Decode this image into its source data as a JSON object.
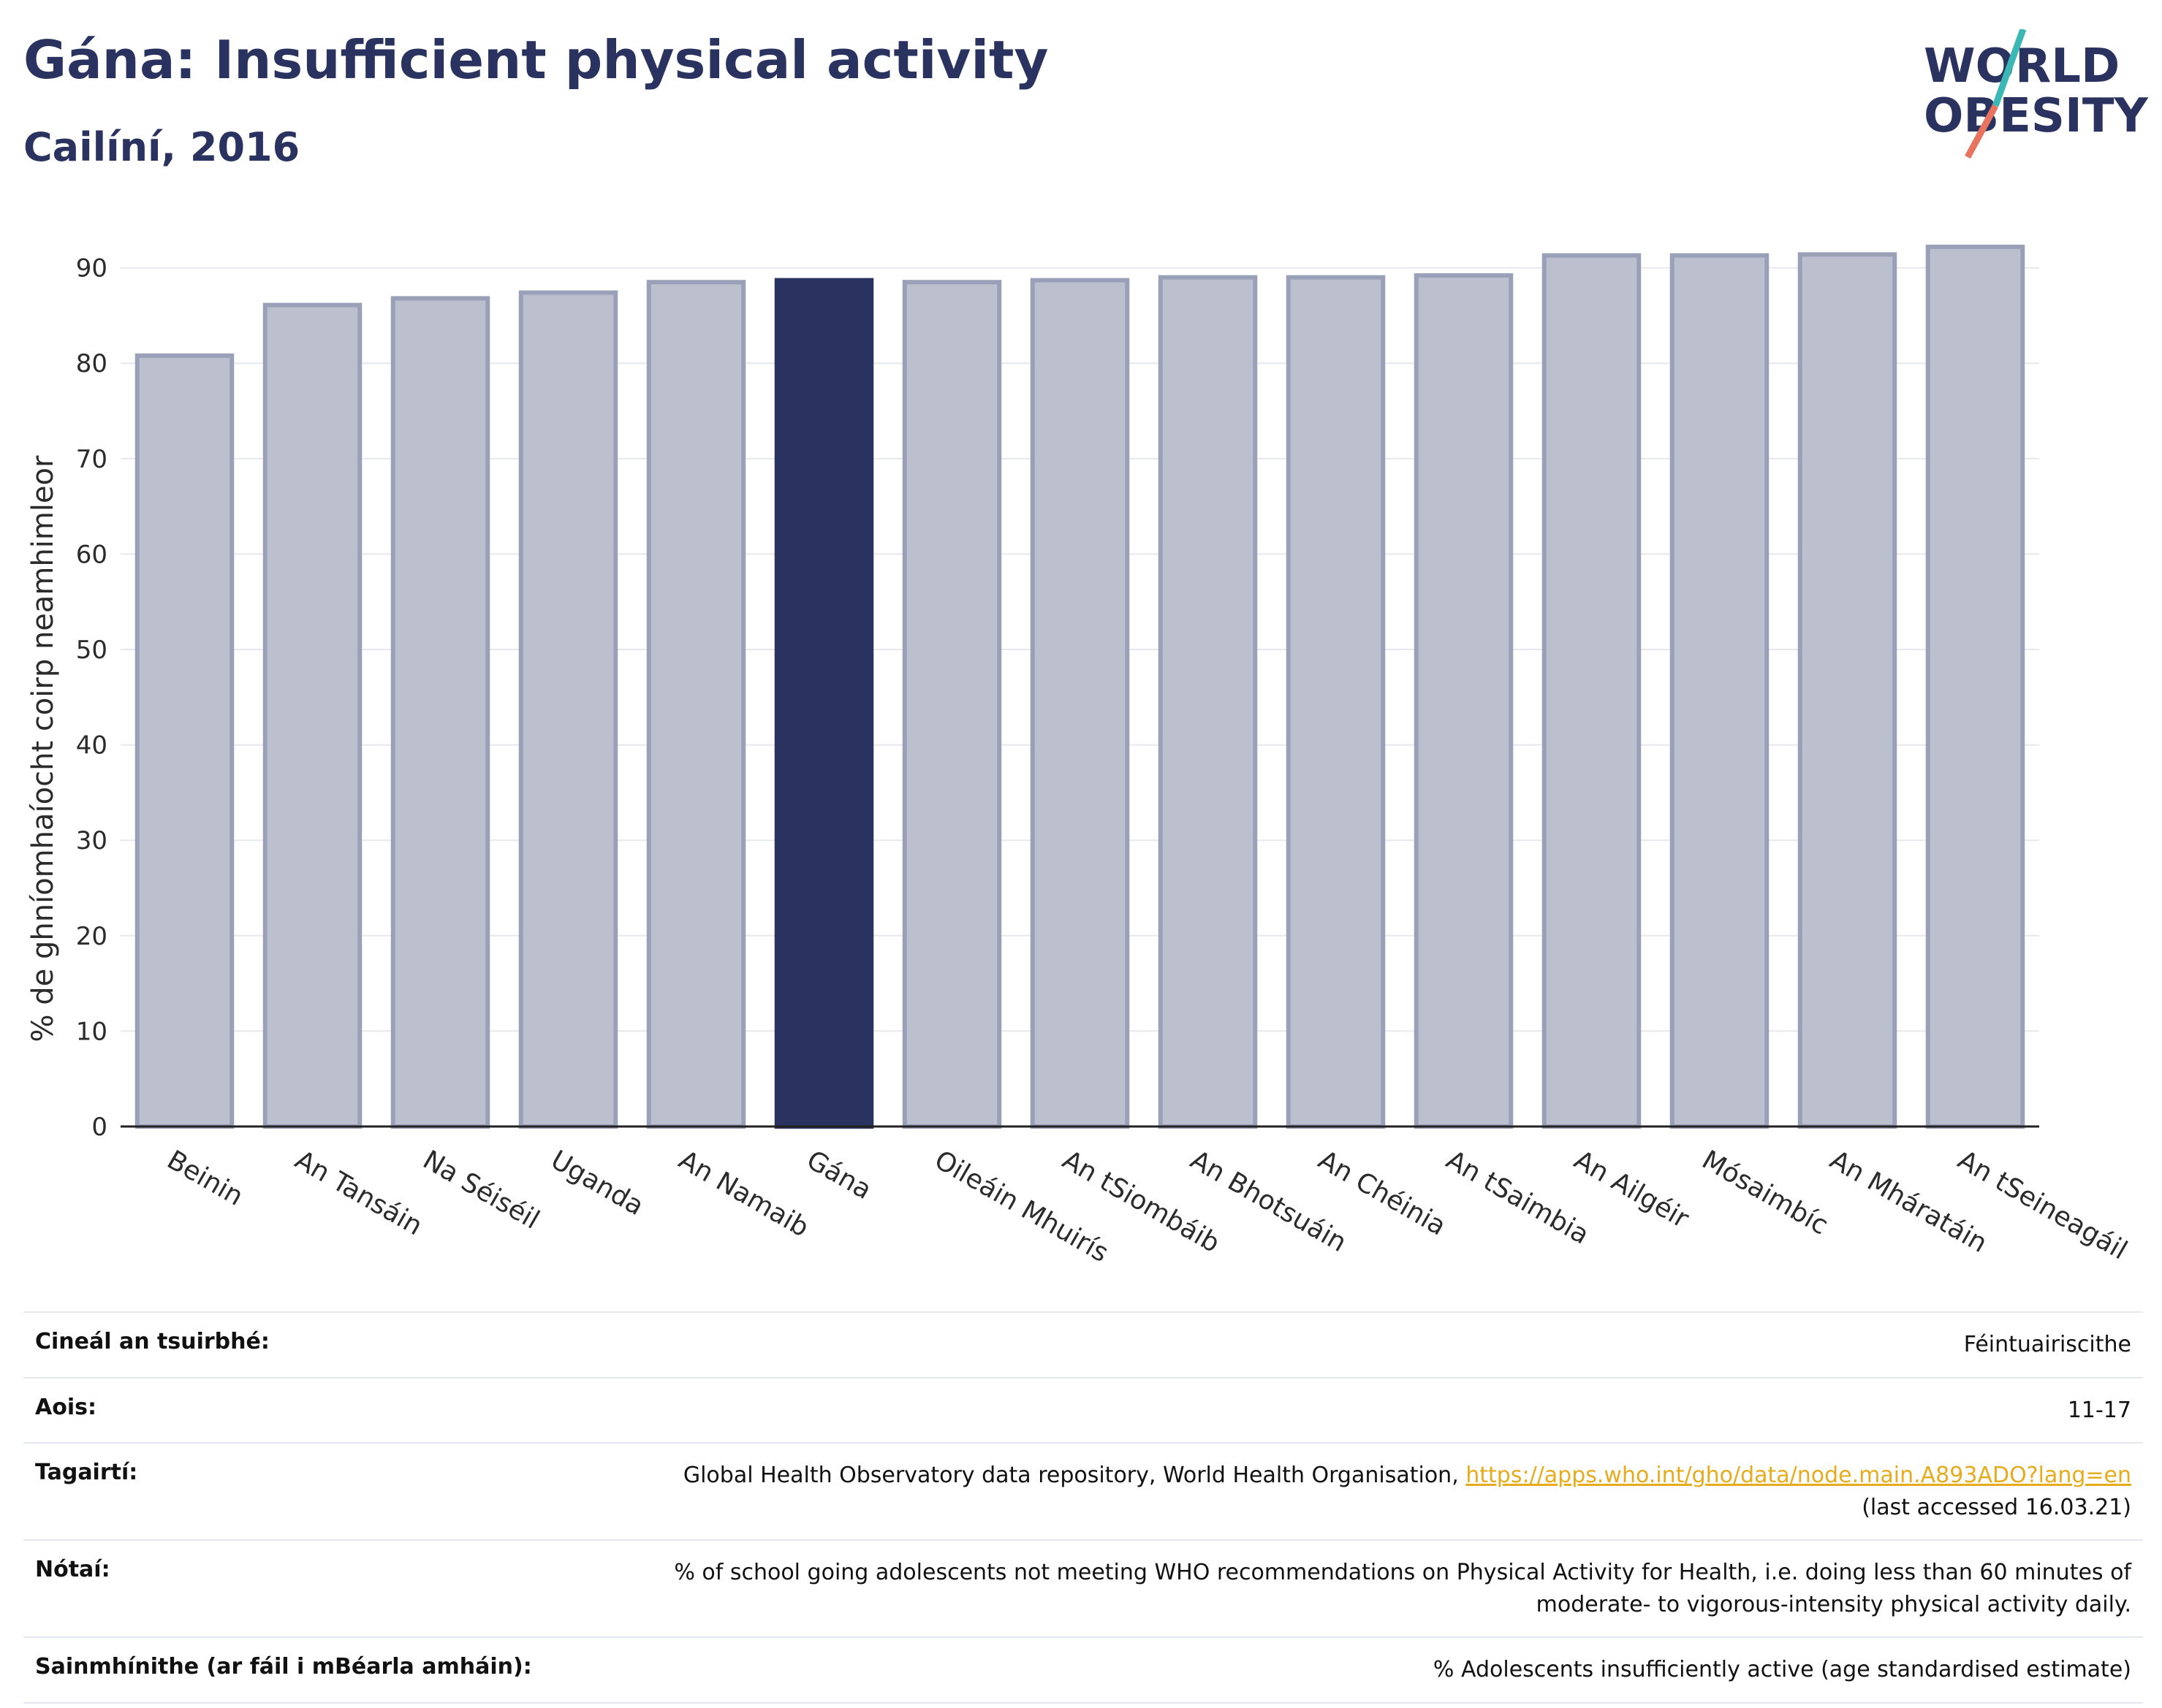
{
  "header": {
    "title": "Gána: Insufficient physical activity",
    "subtitle": "Cailíní, 2016"
  },
  "logo": {
    "line1": "WORLD",
    "line2": "OBESITY"
  },
  "chart_data": {
    "type": "bar",
    "categories": [
      "Beinin",
      "An Tansáin",
      "Na Séiséil",
      "Uganda",
      "An Namaib",
      "Gána",
      "Oileáin Mhuirís",
      "An tSiombáib",
      "An Bhotsuáin",
      "An Chéinia",
      "An tSaimbia",
      "An Ailgéir",
      "Mósaimbíc",
      "An Mháratáin",
      "An tSeineagáil"
    ],
    "values": [
      80.8,
      86.1,
      86.8,
      87.4,
      88.5,
      88.7,
      88.5,
      88.7,
      89.0,
      89.0,
      89.2,
      91.3,
      91.3,
      91.4,
      92.2
    ],
    "highlight": "Gána",
    "ylabel": "% de ghníomhaíocht coirp neamhimleor",
    "xlabel": "",
    "ylim": [
      0,
      90
    ],
    "yticks": [
      0,
      10,
      20,
      30,
      40,
      50,
      60,
      70,
      80,
      90
    ],
    "grid": true,
    "colors": {
      "bar": "#bcc0ce",
      "bar_edge": "#9aa0b8",
      "highlight": "#2a3360"
    }
  },
  "info": [
    {
      "key": "Cineál an tsuirbhé:",
      "value": "Féintuairiscithe"
    },
    {
      "key": "Aois:",
      "value": "11-17"
    },
    {
      "key": "Tagairtí:",
      "value": "Global Health Observatory data repository, World Health Organisation, ",
      "link": "https://apps.who.int/gho/data/node.main.A893ADO?lang=en",
      "value2": "(last accessed 16.03.21)"
    },
    {
      "key": "Nótaí:",
      "value": "% of school going adolescents not meeting WHO recommendations on Physical Activity for Health, i.e. doing less than 60 minutes of",
      "value2": "moderate- to vigorous-intensity physical activity daily."
    },
    {
      "key": "Sainmhínithe (ar fáil i mBéarla amháin):",
      "value": "% Adolescents insufficiently active (age standardised estimate)"
    }
  ]
}
